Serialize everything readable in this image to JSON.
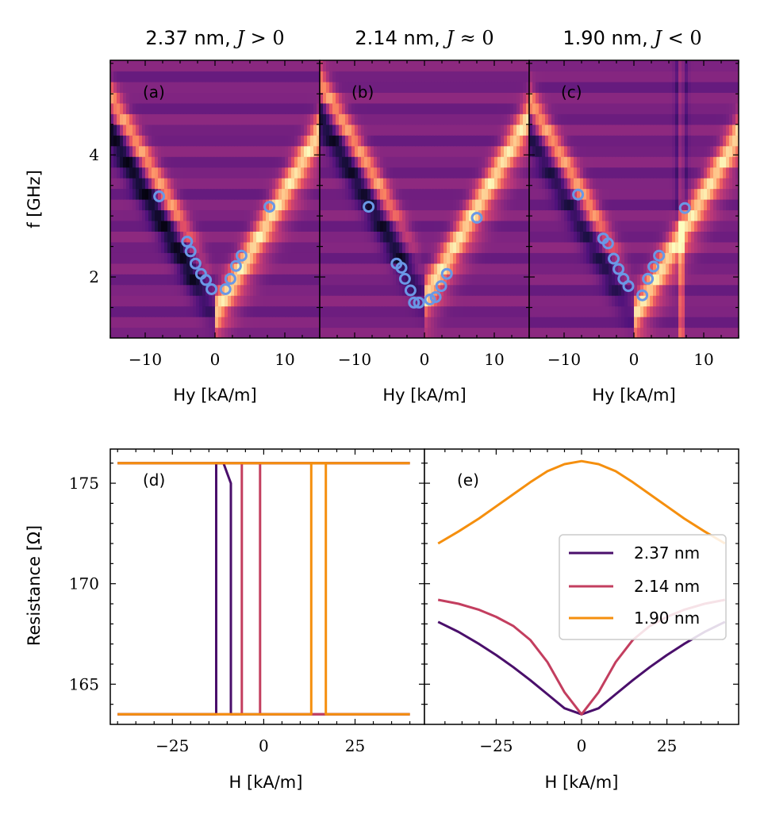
{
  "colors": {
    "t237": "#4a0f6b",
    "t214": "#c33e5f",
    "t190": "#f58f0e",
    "markers": "#6a98e6"
  },
  "colormap": "magma",
  "chart_data": [
    {
      "type": "heatmap",
      "panel": "(a)",
      "title": "2.37 nm, J > 0",
      "title_parts": [
        "2.37 nm, ",
        "J",
        " > 0"
      ],
      "xlabel": "Hy [kA/m]",
      "ylabel": "f [GHz]",
      "xlim": [
        -15,
        15
      ],
      "ylim": [
        1,
        5.55
      ],
      "xticks": [
        -10,
        0,
        10
      ],
      "xtick_labels": [
        "−10",
        "0",
        "10"
      ],
      "yticks": [
        2,
        4
      ],
      "ytick_labels": [
        "2",
        "4"
      ],
      "points": {
        "x": [
          -8,
          -4,
          -3.5,
          -2.8,
          -2,
          -1.3,
          -0.5,
          1.5,
          2.2,
          3,
          3.8,
          7.8
        ],
        "y": [
          3.32,
          2.58,
          2.42,
          2.22,
          2.05,
          1.95,
          1.8,
          1.8,
          1.97,
          2.18,
          2.35,
          3.15
        ]
      }
    },
    {
      "type": "heatmap",
      "panel": "(b)",
      "title": "2.14 nm, J ≈ 0",
      "title_parts": [
        "2.14 nm, ",
        "J",
        " ≈ 0"
      ],
      "xlabel": "Hy [kA/m]",
      "xlim": [
        -15,
        15
      ],
      "ylim": [
        1,
        5.55
      ],
      "xticks": [
        -10,
        0,
        10
      ],
      "xtick_labels": [
        "−10",
        "0",
        "10"
      ],
      "points": {
        "x": [
          -8,
          -4,
          -3.3,
          -2.8,
          -2,
          -1.5,
          -0.8,
          0.8,
          1.6,
          2.4,
          3.2,
          7.5
        ],
        "y": [
          3.15,
          2.22,
          2.15,
          1.97,
          1.78,
          1.58,
          1.58,
          1.63,
          1.67,
          1.85,
          2.05,
          2.97
        ]
      }
    },
    {
      "type": "heatmap",
      "panel": "(c)",
      "title": "1.90 nm, J < 0",
      "title_parts": [
        "1.90 nm, ",
        "J",
        " < 0"
      ],
      "xlabel": "Hy [kA/m]",
      "xlim": [
        -15,
        15
      ],
      "ylim": [
        1,
        5.55
      ],
      "xticks": [
        -10,
        0,
        10
      ],
      "xtick_labels": [
        "−10",
        "0",
        "10"
      ],
      "points": {
        "x": [
          -8,
          -4.4,
          -3.7,
          -2.9,
          -2.2,
          -1.5,
          -0.8,
          1.2,
          2,
          2.8,
          3.6,
          7.3
        ],
        "y": [
          3.35,
          2.63,
          2.55,
          2.3,
          2.13,
          1.97,
          1.85,
          1.7,
          1.97,
          2.17,
          2.35,
          3.13
        ]
      }
    },
    {
      "type": "line",
      "panel": "(d)",
      "xlabel": "H [kA/m]",
      "ylabel": "Resistance [Ω]",
      "xlim": [
        -42,
        44
      ],
      "ylim": [
        163,
        176.7
      ],
      "xticks": [
        -25,
        0,
        25
      ],
      "xtick_labels": [
        "−25",
        "0",
        "25"
      ],
      "yticks": [
        165,
        170,
        175
      ],
      "ytick_labels": [
        "165",
        "170",
        "175"
      ],
      "series": [
        {
          "key": "t237",
          "x": [
            -40,
            -13,
            -13,
            40
          ],
          "y": [
            163.5,
            163.5,
            176,
            176
          ]
        },
        {
          "key": "t237",
          "x": [
            -40,
            -11,
            -10,
            -9,
            -9,
            40
          ],
          "y": [
            176,
            176,
            175.5,
            175,
            163.5,
            163.5
          ]
        },
        {
          "key": "t214",
          "x": [
            -40,
            -6,
            -6,
            40
          ],
          "y": [
            163.5,
            163.5,
            176,
            176
          ]
        },
        {
          "key": "t214",
          "x": [
            -40,
            -1,
            -1,
            40
          ],
          "y": [
            176,
            176,
            163.5,
            163.5
          ]
        },
        {
          "key": "t190",
          "x": [
            -40,
            13,
            13,
            40
          ],
          "y": [
            163.5,
            163.5,
            176,
            176
          ]
        },
        {
          "key": "t190",
          "x": [
            -40,
            17,
            17,
            40
          ],
          "y": [
            176,
            176,
            163.5,
            163.5
          ]
        }
      ]
    },
    {
      "type": "line",
      "panel": "(e)",
      "xlabel": "H [kA/m]",
      "xlim": [
        -46,
        46
      ],
      "ylim": [
        163,
        176.7
      ],
      "xticks": [
        -25,
        0,
        25
      ],
      "xtick_labels": [
        "−25",
        "0",
        "25"
      ],
      "legend_position": "right",
      "legend": [
        "2.37 nm",
        "2.14 nm",
        "1.90 nm"
      ],
      "series": [
        {
          "name": "2.37 nm",
          "key": "t237",
          "x": [
            -42,
            -36,
            -30,
            -25,
            -20,
            -15,
            -10,
            -5,
            0,
            5,
            10,
            15,
            20,
            25,
            30,
            36,
            42
          ],
          "y": [
            168.1,
            167.6,
            167,
            166.45,
            165.85,
            165.2,
            164.5,
            163.8,
            163.5,
            163.8,
            164.5,
            165.2,
            165.85,
            166.45,
            167,
            167.6,
            168.1
          ]
        },
        {
          "name": "2.14 nm",
          "key": "t214",
          "x": [
            -42,
            -36,
            -30,
            -25,
            -20,
            -15,
            -10,
            -5,
            0,
            5,
            10,
            15,
            20,
            25,
            30,
            36,
            42
          ],
          "y": [
            169.2,
            169,
            168.7,
            168.35,
            167.9,
            167.2,
            166.1,
            164.6,
            163.5,
            164.6,
            166.1,
            167.2,
            167.9,
            168.35,
            168.7,
            169,
            169.2
          ]
        },
        {
          "name": "1.90 nm",
          "key": "t190",
          "x": [
            -42,
            -36,
            -30,
            -25,
            -20,
            -15,
            -10,
            -5,
            0,
            5,
            10,
            15,
            20,
            25,
            30,
            36,
            42
          ],
          "y": [
            172,
            172.6,
            173.25,
            173.85,
            174.45,
            175.05,
            175.6,
            175.95,
            176.1,
            175.95,
            175.6,
            175.05,
            174.45,
            173.85,
            173.25,
            172.6,
            172
          ]
        }
      ]
    }
  ]
}
